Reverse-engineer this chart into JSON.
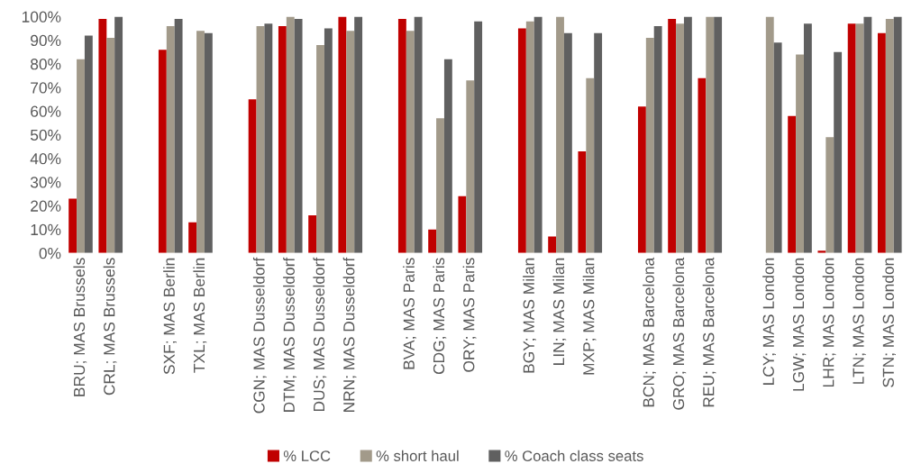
{
  "chart_data": {
    "type": "bar",
    "categories": [
      "BRU; MAS Brussels",
      "CRL; MAS Brussels",
      null,
      "SXF; MAS Berlin",
      "TXL; MAS Berlin",
      null,
      "CGN; MAS Dusseldorf",
      "DTM; MAS Dusseldorf",
      "DUS; MAS Dusseldorf",
      "NRN; MAS Dusseldorf",
      null,
      "BVA; MAS Paris",
      "CDG; MAS Paris",
      "ORY; MAS Paris",
      null,
      "BGY; MAS Milan",
      "LIN; MAS Milan",
      "MXP; MAS Milan",
      null,
      "BCN; MAS Barcelona",
      "GRO; MAS Barcelona",
      "REU; MAS Barcelona",
      null,
      "LCY; MAS London",
      "LGW; MAS London",
      "LHR; MAS London",
      "LTN; MAS London",
      "STN; MAS London"
    ],
    "series": [
      {
        "name": "% LCC",
        "color": "#c00000",
        "values": [
          23,
          99,
          null,
          86,
          13,
          null,
          65,
          96,
          16,
          100,
          null,
          99,
          10,
          24,
          null,
          95,
          7,
          43,
          null,
          62,
          99,
          74,
          null,
          0,
          58,
          1,
          97,
          93
        ]
      },
      {
        "name": "% short haul",
        "color": "#a29a8a",
        "values": [
          82,
          91,
          null,
          96,
          94,
          null,
          96,
          100,
          88,
          94,
          null,
          94,
          57,
          73,
          null,
          98,
          100,
          74,
          null,
          91,
          97,
          100,
          null,
          100,
          84,
          49,
          97,
          99
        ]
      },
      {
        "name": "% Coach class seats",
        "color": "#606060",
        "values": [
          92,
          100,
          null,
          99,
          93,
          null,
          97,
          99,
          95,
          100,
          null,
          100,
          82,
          98,
          null,
          100,
          93,
          93,
          null,
          96,
          100,
          100,
          null,
          89,
          97,
          85,
          100,
          100
        ]
      }
    ],
    "ylim": [
      0,
      100
    ],
    "yticks": [
      {
        "value": 0,
        "label": "0%"
      },
      {
        "value": 10,
        "label": "10%"
      },
      {
        "value": 20,
        "label": "20%"
      },
      {
        "value": 30,
        "label": "30%"
      },
      {
        "value": 40,
        "label": "40%"
      },
      {
        "value": 50,
        "label": "50%"
      },
      {
        "value": 60,
        "label": "60%"
      },
      {
        "value": 70,
        "label": "70%"
      },
      {
        "value": 80,
        "label": "80%"
      },
      {
        "value": 90,
        "label": "90%"
      },
      {
        "value": 100,
        "label": "100%"
      }
    ],
    "grid": false,
    "legend": "bottom"
  }
}
